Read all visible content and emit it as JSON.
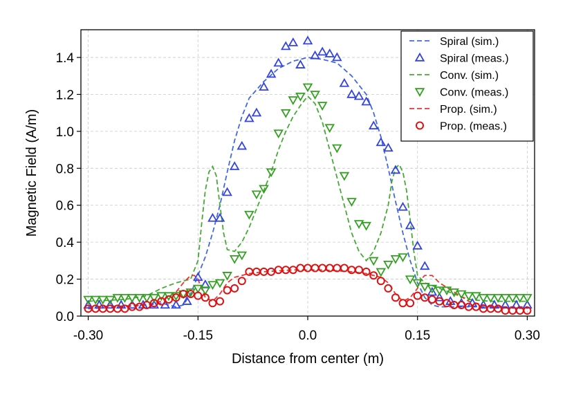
{
  "chart_data": {
    "type": "line",
    "title": "",
    "xlabel": "Distance from center (m)",
    "ylabel": "Magnetic Field (A/m)",
    "xlim": [
      -0.31,
      0.31
    ],
    "ylim": [
      0.0,
      1.55
    ],
    "grid": true,
    "legend_position": "top-right",
    "xticks": [
      -0.3,
      -0.15,
      0.0,
      0.15,
      0.3
    ],
    "xtick_labels": [
      "-0.30",
      "-0.15",
      "0.0",
      "0.15",
      "0.30"
    ],
    "yticks": [
      0.0,
      0.2,
      0.4,
      0.6,
      0.8,
      1.0,
      1.2,
      1.4
    ],
    "ytick_labels": [
      "0.0",
      "0.2",
      "0.4",
      "0.6",
      "0.8",
      "1.0",
      "1.2",
      "1.4"
    ],
    "series": [
      {
        "name": "Spiral (sim.)",
        "kind": "line",
        "style": "dashed",
        "color": "#4169e1",
        "x": [
          -0.3,
          -0.25,
          -0.22,
          -0.2,
          -0.18,
          -0.17,
          -0.16,
          -0.15,
          -0.14,
          -0.13,
          -0.12,
          -0.11,
          -0.1,
          -0.09,
          -0.08,
          -0.06,
          -0.04,
          -0.02,
          0.0,
          0.02,
          0.04,
          0.06,
          0.08,
          0.09,
          0.1,
          0.11,
          0.12,
          0.13,
          0.14,
          0.15,
          0.16,
          0.17,
          0.18,
          0.2,
          0.22,
          0.25,
          0.3
        ],
        "y": [
          0.05,
          0.055,
          0.06,
          0.07,
          0.05,
          0.06,
          0.12,
          0.22,
          0.32,
          0.45,
          0.6,
          0.78,
          0.95,
          1.08,
          1.18,
          1.27,
          1.34,
          1.38,
          1.4,
          1.39,
          1.37,
          1.3,
          1.2,
          1.1,
          0.97,
          0.8,
          0.62,
          0.45,
          0.3,
          0.18,
          0.1,
          0.06,
          0.05,
          0.05,
          0.05,
          0.05,
          0.05
        ]
      },
      {
        "name": "Spiral (meas.)",
        "kind": "marker",
        "marker": "triangle-up",
        "color": "#3344dd",
        "x": [
          -0.3,
          -0.285,
          -0.27,
          -0.255,
          -0.24,
          -0.225,
          -0.21,
          -0.195,
          -0.18,
          -0.165,
          -0.15,
          -0.14,
          -0.13,
          -0.12,
          -0.11,
          -0.1,
          -0.09,
          -0.08,
          -0.07,
          -0.06,
          -0.05,
          -0.04,
          -0.03,
          -0.02,
          -0.01,
          0.0,
          0.01,
          0.02,
          0.03,
          0.04,
          0.05,
          0.06,
          0.07,
          0.08,
          0.09,
          0.1,
          0.11,
          0.12,
          0.13,
          0.14,
          0.15,
          0.16,
          0.17,
          0.18,
          0.195,
          0.21,
          0.225,
          0.24,
          0.255,
          0.27,
          0.285,
          0.3
        ],
        "y": [
          0.06,
          0.06,
          0.06,
          0.06,
          0.06,
          0.06,
          0.06,
          0.06,
          0.06,
          0.08,
          0.21,
          0.17,
          0.53,
          0.53,
          0.67,
          0.81,
          0.92,
          1.07,
          1.1,
          1.24,
          1.31,
          1.37,
          1.46,
          1.48,
          1.36,
          1.49,
          1.41,
          1.43,
          1.42,
          1.4,
          1.26,
          1.2,
          1.19,
          1.16,
          1.03,
          0.94,
          0.91,
          0.79,
          0.59,
          0.49,
          0.38,
          0.27,
          0.13,
          0.1,
          0.08,
          0.07,
          0.07,
          0.06,
          0.06,
          0.06,
          0.06,
          0.06
        ]
      },
      {
        "name": "Conv. (sim.)",
        "kind": "line",
        "style": "dashed",
        "color": "#44aa33",
        "x": [
          -0.3,
          -0.25,
          -0.22,
          -0.2,
          -0.18,
          -0.16,
          -0.15,
          -0.145,
          -0.14,
          -0.135,
          -0.13,
          -0.125,
          -0.12,
          -0.115,
          -0.11,
          -0.1,
          -0.09,
          -0.08,
          -0.07,
          -0.06,
          -0.05,
          -0.04,
          -0.03,
          -0.02,
          -0.01,
          0.0,
          0.01,
          0.02,
          0.03,
          0.04,
          0.05,
          0.06,
          0.07,
          0.08,
          0.09,
          0.1,
          0.11,
          0.115,
          0.12,
          0.125,
          0.13,
          0.135,
          0.14,
          0.145,
          0.15,
          0.16,
          0.18,
          0.2,
          0.22,
          0.25,
          0.3
        ],
        "y": [
          0.08,
          0.09,
          0.11,
          0.15,
          0.18,
          0.2,
          0.3,
          0.5,
          0.68,
          0.78,
          0.81,
          0.76,
          0.6,
          0.45,
          0.36,
          0.35,
          0.4,
          0.48,
          0.58,
          0.68,
          0.78,
          0.9,
          1.0,
          1.08,
          1.14,
          1.19,
          1.15,
          1.05,
          0.9,
          0.75,
          0.6,
          0.45,
          0.35,
          0.3,
          0.35,
          0.45,
          0.6,
          0.73,
          0.8,
          0.82,
          0.78,
          0.68,
          0.52,
          0.35,
          0.22,
          0.18,
          0.15,
          0.12,
          0.09,
          0.08,
          0.08
        ]
      },
      {
        "name": "Conv. (meas.)",
        "kind": "marker",
        "marker": "triangle-down",
        "color": "#33a022",
        "x": [
          -0.3,
          -0.29,
          -0.28,
          -0.27,
          -0.26,
          -0.25,
          -0.24,
          -0.23,
          -0.22,
          -0.21,
          -0.2,
          -0.19,
          -0.18,
          -0.17,
          -0.16,
          -0.15,
          -0.14,
          -0.13,
          -0.12,
          -0.11,
          -0.1,
          -0.09,
          -0.08,
          -0.07,
          -0.06,
          -0.05,
          -0.04,
          -0.03,
          -0.02,
          -0.01,
          0.0,
          0.01,
          0.02,
          0.03,
          0.04,
          0.05,
          0.06,
          0.07,
          0.08,
          0.09,
          0.1,
          0.11,
          0.12,
          0.13,
          0.14,
          0.15,
          0.16,
          0.17,
          0.18,
          0.19,
          0.2,
          0.21,
          0.22,
          0.23,
          0.24,
          0.25,
          0.26,
          0.27,
          0.28,
          0.29,
          0.3
        ],
        "y": [
          0.09,
          0.09,
          0.09,
          0.09,
          0.1,
          0.1,
          0.1,
          0.1,
          0.1,
          0.1,
          0.11,
          0.11,
          0.11,
          0.12,
          0.13,
          0.15,
          0.14,
          0.17,
          0.18,
          0.22,
          0.31,
          0.33,
          0.55,
          0.66,
          0.69,
          0.78,
          0.99,
          1.1,
          1.17,
          1.19,
          1.24,
          1.2,
          1.14,
          1.02,
          0.91,
          0.76,
          0.62,
          0.5,
          0.49,
          0.3,
          0.24,
          0.28,
          0.31,
          0.32,
          0.2,
          0.18,
          0.16,
          0.15,
          0.14,
          0.14,
          0.13,
          0.12,
          0.11,
          0.11,
          0.1,
          0.1,
          0.1,
          0.1,
          0.1,
          0.1,
          0.1
        ]
      },
      {
        "name": "Prop. (sim.)",
        "kind": "line",
        "style": "dashed",
        "color": "#ee3333",
        "x": [
          -0.3,
          -0.25,
          -0.22,
          -0.2,
          -0.18,
          -0.17,
          -0.16,
          -0.155,
          -0.15,
          -0.145,
          -0.14,
          -0.13,
          -0.12,
          -0.11,
          -0.1,
          -0.09,
          -0.08,
          -0.06,
          -0.04,
          -0.02,
          0.0,
          0.02,
          0.04,
          0.06,
          0.08,
          0.09,
          0.1,
          0.11,
          0.12,
          0.13,
          0.14,
          0.15,
          0.155,
          0.16,
          0.17,
          0.18,
          0.2,
          0.22,
          0.25,
          0.3
        ],
        "y": [
          0.04,
          0.05,
          0.06,
          0.08,
          0.13,
          0.18,
          0.22,
          0.22,
          0.2,
          0.15,
          0.1,
          0.08,
          0.12,
          0.18,
          0.21,
          0.22,
          0.23,
          0.24,
          0.245,
          0.25,
          0.25,
          0.25,
          0.245,
          0.24,
          0.23,
          0.22,
          0.21,
          0.18,
          0.12,
          0.08,
          0.1,
          0.15,
          0.2,
          0.22,
          0.22,
          0.18,
          0.13,
          0.08,
          0.05,
          0.04
        ]
      },
      {
        "name": "Prop. (meas.)",
        "kind": "marker",
        "marker": "circle",
        "color": "#dd1111",
        "x": [
          -0.3,
          -0.29,
          -0.28,
          -0.27,
          -0.26,
          -0.25,
          -0.24,
          -0.23,
          -0.22,
          -0.21,
          -0.2,
          -0.19,
          -0.18,
          -0.17,
          -0.16,
          -0.15,
          -0.14,
          -0.13,
          -0.12,
          -0.11,
          -0.1,
          -0.09,
          -0.08,
          -0.07,
          -0.06,
          -0.05,
          -0.04,
          -0.03,
          -0.02,
          -0.01,
          0.0,
          0.01,
          0.02,
          0.03,
          0.04,
          0.05,
          0.06,
          0.07,
          0.08,
          0.09,
          0.1,
          0.11,
          0.12,
          0.13,
          0.14,
          0.15,
          0.16,
          0.17,
          0.18,
          0.19,
          0.2,
          0.21,
          0.22,
          0.23,
          0.24,
          0.25,
          0.26,
          0.27,
          0.28,
          0.29,
          0.3
        ],
        "y": [
          0.04,
          0.04,
          0.04,
          0.04,
          0.04,
          0.04,
          0.05,
          0.05,
          0.06,
          0.07,
          0.08,
          0.09,
          0.1,
          0.12,
          0.12,
          0.11,
          0.1,
          0.07,
          0.08,
          0.14,
          0.15,
          0.19,
          0.24,
          0.24,
          0.24,
          0.24,
          0.25,
          0.25,
          0.25,
          0.26,
          0.26,
          0.26,
          0.26,
          0.26,
          0.26,
          0.26,
          0.25,
          0.25,
          0.24,
          0.22,
          0.19,
          0.15,
          0.1,
          0.07,
          0.07,
          0.11,
          0.1,
          0.09,
          0.08,
          0.07,
          0.06,
          0.06,
          0.05,
          0.05,
          0.04,
          0.04,
          0.04,
          0.03,
          0.03,
          0.03,
          0.03
        ]
      }
    ]
  }
}
